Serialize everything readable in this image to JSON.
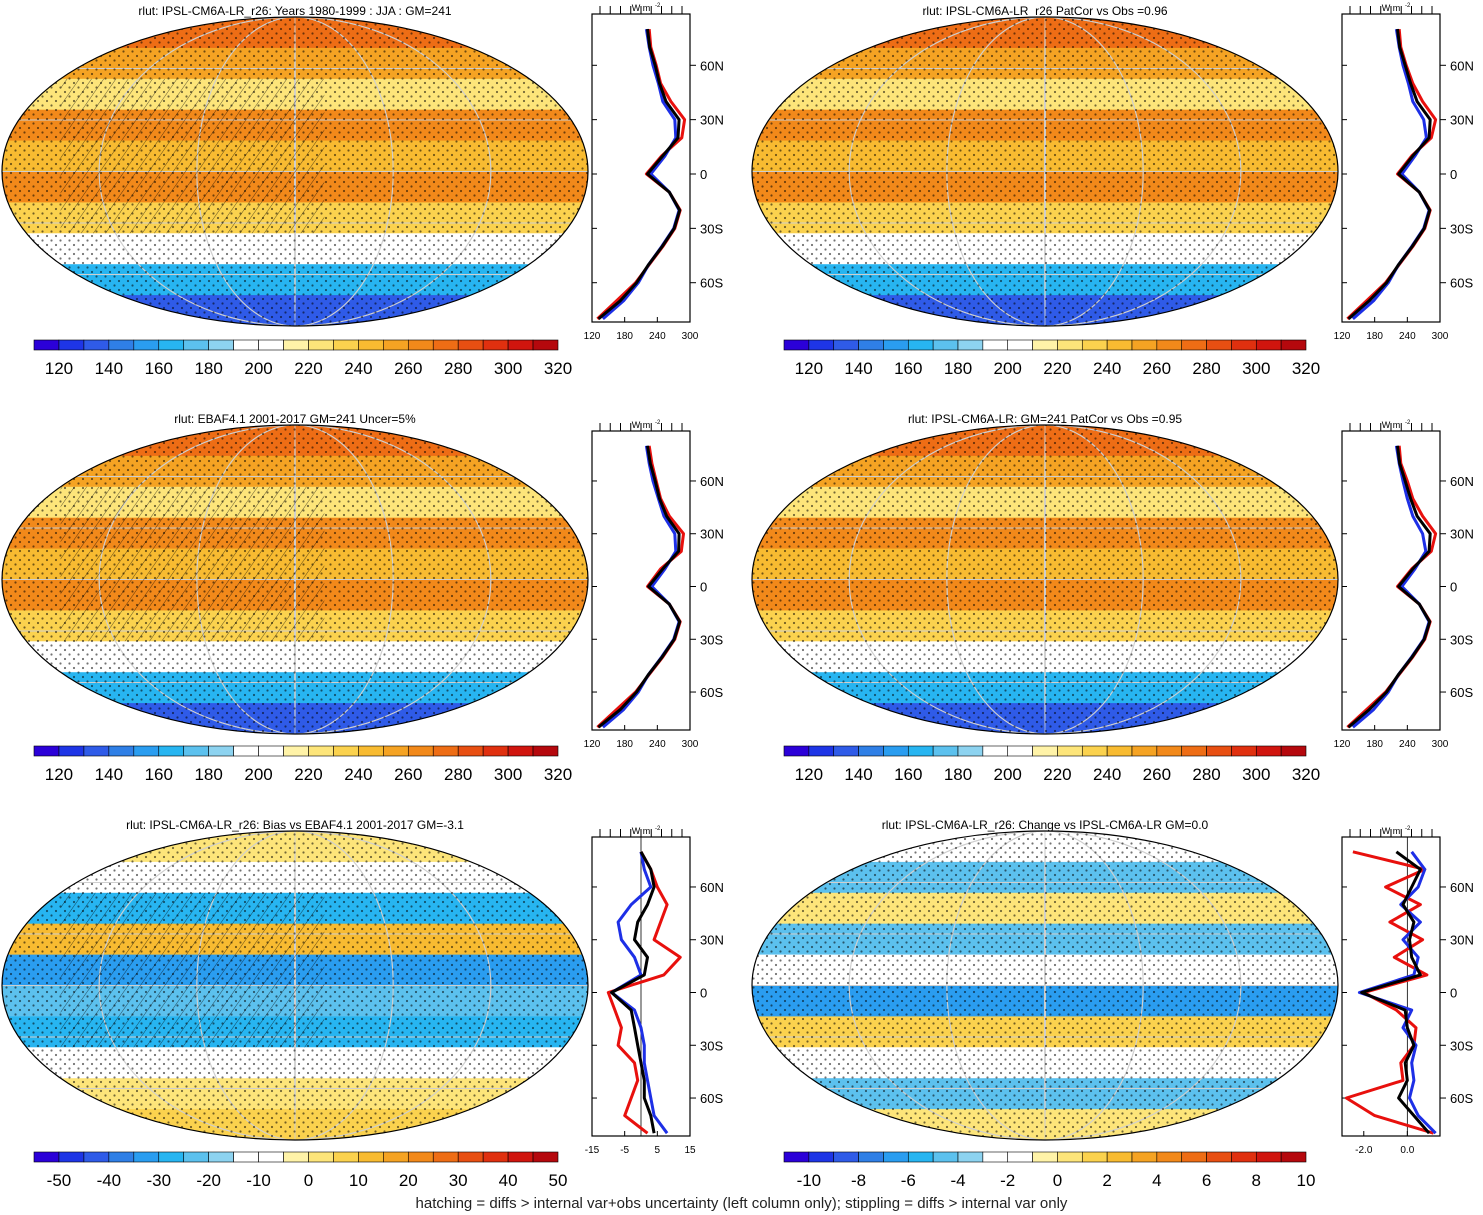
{
  "footnote": "hatching = diffs > internal var+obs uncertainty (left column only); stippling = diffs > internal var only",
  "palettes": {
    "absolute": [
      "#2b00d8",
      "#1e35e6",
      "#2f5be8",
      "#2f7fe6",
      "#2a9df0",
      "#27b5f1",
      "#5cc1ee",
      "#8dd3f0",
      "#ffffff",
      "#ffffff",
      "#fff3a8",
      "#fde57a",
      "#fbd24e",
      "#f8bb31",
      "#f5a323",
      "#f2891a",
      "#ee6d15",
      "#e84f12",
      "#e0300f",
      "#d0150e",
      "#b5080d"
    ],
    "difference": [
      "#2b00d8",
      "#1e35e6",
      "#2f5be8",
      "#2f7fe6",
      "#2a9df0",
      "#27b5f1",
      "#5cc1ee",
      "#8dd3f0",
      "#ffffff",
      "#ffffff",
      "#fff3a8",
      "#fde57a",
      "#fbd24e",
      "#f8bb31",
      "#f5a323",
      "#f2891a",
      "#ee6d15",
      "#e84f12",
      "#e0300f",
      "#d0150e",
      "#b5080d"
    ]
  },
  "line_colors": {
    "model": "#e8100d",
    "obs": "#1d2fe6",
    "mean": "#000000"
  },
  "profile_unit": "W m",
  "profile_unit_sup": "-2",
  "lat_ticks": [
    "60N",
    "30N",
    "0",
    "30S",
    "60S"
  ],
  "chart_data": [
    {
      "type": "heatmap",
      "title": "rlut: IPSL-CM6A-LR_r26: Years 1980-1999 : JJA : GM=241",
      "colorbar_labels": [
        "120",
        "140",
        "160",
        "180",
        "200",
        "220",
        "240",
        "260",
        "280",
        "300",
        "320"
      ],
      "palette": "absolute",
      "hatched": true,
      "profile": {
        "type": "line",
        "xlim": [
          120,
          300
        ],
        "x_ticks": [
          "120",
          "180",
          "240",
          "300"
        ],
        "lat": [
          80,
          70,
          60,
          50,
          40,
          30,
          20,
          10,
          0,
          -10,
          -20,
          -30,
          -40,
          -50,
          -60,
          -70,
          -80
        ],
        "series": [
          {
            "color": "model",
            "values": [
              225,
              228,
              238,
              246,
              265,
              290,
              285,
              248,
              220,
              262,
              282,
              272,
              250,
              225,
              200,
              165,
              130
            ]
          },
          {
            "color": "obs",
            "values": [
              220,
              225,
              232,
              242,
              250,
              272,
              274,
              254,
              228,
              262,
              280,
              270,
              248,
              224,
              205,
              178,
              140
            ]
          },
          {
            "color": "mean",
            "values": [
              222,
              226,
              236,
              244,
              256,
              280,
              278,
              250,
              222,
              262,
              281,
              271,
              249,
              224,
              202,
              172,
              132
            ]
          }
        ]
      }
    },
    {
      "type": "heatmap",
      "title": "rlut: IPSL-CM6A-LR_r26 PatCor vs Obs =0.96",
      "colorbar_labels": [
        "120",
        "140",
        "160",
        "180",
        "200",
        "220",
        "240",
        "260",
        "280",
        "300",
        "320"
      ],
      "palette": "absolute",
      "hatched": false,
      "profile": {
        "type": "line",
        "xlim": [
          120,
          300
        ],
        "x_ticks": [
          "120",
          "180",
          "240",
          "300"
        ],
        "lat": [
          80,
          70,
          60,
          50,
          40,
          30,
          20,
          10,
          0,
          -10,
          -20,
          -30,
          -40,
          -50,
          -60,
          -70,
          -80
        ],
        "series": [
          {
            "color": "model",
            "values": [
              225,
              228,
              238,
              250,
              268,
              292,
              284,
              248,
              222,
              262,
              282,
              272,
              250,
              225,
              200,
              165,
              130
            ]
          },
          {
            "color": "obs",
            "values": [
              220,
              225,
              232,
              242,
              250,
              270,
              275,
              254,
              230,
              262,
              280,
              270,
              248,
              224,
              205,
              178,
              140
            ]
          },
          {
            "color": "mean",
            "values": [
              222,
              226,
              236,
              246,
              258,
              282,
              280,
              250,
              224,
              262,
              281,
              271,
              249,
              224,
              202,
              170,
              132
            ]
          }
        ]
      }
    },
    {
      "type": "heatmap",
      "title": "rlut: EBAF4.1 2001-2017 GM=241 Uncer=5%",
      "colorbar_labels": [
        "120",
        "140",
        "160",
        "180",
        "200",
        "220",
        "240",
        "260",
        "280",
        "300",
        "320"
      ],
      "palette": "absolute",
      "hatched": true,
      "profile": {
        "type": "line",
        "xlim": [
          120,
          300
        ],
        "x_ticks": [
          "120",
          "180",
          "240",
          "300"
        ],
        "lat": [
          80,
          70,
          60,
          50,
          40,
          30,
          20,
          10,
          0,
          -10,
          -20,
          -30,
          -40,
          -50,
          -60,
          -70,
          -80
        ],
        "series": [
          {
            "color": "model",
            "values": [
              225,
              230,
              238,
              246,
              262,
              288,
              284,
              246,
              222,
              262,
              282,
              272,
              250,
              225,
              200,
              165,
              130
            ]
          },
          {
            "color": "obs",
            "values": [
              220,
              225,
              232,
              242,
              252,
              272,
              274,
              254,
              230,
              262,
              280,
              270,
              248,
              224,
              205,
              178,
              140
            ]
          },
          {
            "color": "mean",
            "values": [
              222,
              227,
              236,
              244,
              257,
              280,
              279,
              250,
              224,
              262,
              281,
              271,
              249,
              224,
              202,
              172,
              132
            ]
          }
        ]
      }
    },
    {
      "type": "heatmap",
      "title": "rlut: IPSL-CM6A-LR: GM=241 PatCor vs Obs =0.95",
      "colorbar_labels": [
        "120",
        "140",
        "160",
        "180",
        "200",
        "220",
        "240",
        "260",
        "280",
        "300",
        "320"
      ],
      "palette": "absolute",
      "hatched": false,
      "profile": {
        "type": "line",
        "xlim": [
          120,
          300
        ],
        "x_ticks": [
          "120",
          "180",
          "240",
          "300"
        ],
        "lat": [
          80,
          70,
          60,
          50,
          40,
          30,
          20,
          10,
          0,
          -10,
          -20,
          -30,
          -40,
          -50,
          -60,
          -70,
          -80
        ],
        "series": [
          {
            "color": "model",
            "values": [
              225,
              228,
              240,
              250,
              268,
              292,
              284,
              248,
              222,
              262,
              282,
              272,
              250,
              225,
              200,
              165,
              130
            ]
          },
          {
            "color": "obs",
            "values": [
              220,
              225,
              232,
              240,
              250,
              268,
              274,
              254,
              230,
              262,
              280,
              270,
              248,
              224,
              205,
              178,
              140
            ]
          },
          {
            "color": "mean",
            "values": [
              222,
              226,
              236,
              246,
              258,
              282,
              280,
              250,
              224,
              262,
              281,
              271,
              249,
              224,
              202,
              170,
              132
            ]
          }
        ]
      }
    },
    {
      "type": "heatmap",
      "title": "rlut: IPSL-CM6A-LR_r26: Bias vs EBAF4.1 2001-2017 GM=-3.1",
      "colorbar_labels": [
        "-50",
        "-40",
        "-30",
        "-20",
        "-10",
        "0",
        "10",
        "20",
        "30",
        "40",
        "50"
      ],
      "palette": "difference",
      "hatched": true,
      "profile": {
        "type": "line",
        "xlim": [
          -15,
          15
        ],
        "x_ticks": [
          "-15",
          "-5",
          "5",
          "15"
        ],
        "zero_line": 0,
        "lat": [
          80,
          70,
          60,
          50,
          40,
          30,
          20,
          10,
          0,
          -10,
          -20,
          -30,
          -40,
          -50,
          -60,
          -70,
          -80
        ],
        "series": [
          {
            "color": "model",
            "values": [
              0,
              3,
              5,
              8,
              6,
              4,
              12,
              7,
              -10,
              -8,
              -6,
              -7,
              -2,
              -1,
              -3,
              -5,
              2
            ]
          },
          {
            "color": "obs",
            "values": [
              0,
              1,
              3,
              -3,
              -7,
              -6,
              -2,
              0,
              -9,
              -2,
              0,
              1,
              1,
              2,
              3,
              4,
              8
            ]
          },
          {
            "color": "mean",
            "values": [
              0,
              3,
              4,
              2,
              -1,
              -2,
              2,
              1,
              -9,
              -3,
              -2,
              -1,
              0,
              1,
              1,
              3,
              4
            ]
          }
        ]
      }
    },
    {
      "type": "heatmap",
      "title": "rlut: IPSL-CM6A-LR_r26: Change vs IPSL-CM6A-LR GM=0.0",
      "colorbar_labels": [
        "-10",
        "-8",
        "-6",
        "-4",
        "-2",
        "0",
        "2",
        "4",
        "6",
        "8",
        "10"
      ],
      "palette": "difference",
      "hatched": false,
      "profile": {
        "type": "line",
        "xlim": [
          -3,
          1.5
        ],
        "x_ticks": [
          "-2.0",
          "0.0"
        ],
        "x_tick_values": [
          -2,
          0
        ],
        "zero_line": 0,
        "lat": [
          80,
          70,
          60,
          50,
          40,
          30,
          20,
          10,
          0,
          -10,
          -20,
          -30,
          -40,
          -50,
          -60,
          -70,
          -80
        ],
        "series": [
          {
            "color": "model",
            "values": [
              -2.5,
              0.8,
              -1.0,
              0.6,
              -0.8,
              0.7,
              -0.6,
              0.9,
              -2.0,
              -0.5,
              0.4,
              0.3,
              -0.3,
              -0.2,
              -2.8,
              -1.5,
              1.2
            ]
          },
          {
            "color": "obs",
            "values": [
              0.2,
              0.8,
              0.5,
              -0.3,
              0.6,
              -0.2,
              0.5,
              0.3,
              -2.2,
              0.2,
              -0.2,
              0.4,
              0.2,
              0.3,
              0.1,
              0.5,
              1.3
            ]
          },
          {
            "color": "mean",
            "values": [
              -0.5,
              0.6,
              0.2,
              -0.2,
              0.3,
              0.1,
              0.2,
              0.6,
              -2.1,
              -0.1,
              0.0,
              0.3,
              -0.1,
              0.0,
              -0.4,
              0.3,
              1.0
            ]
          }
        ]
      }
    }
  ]
}
